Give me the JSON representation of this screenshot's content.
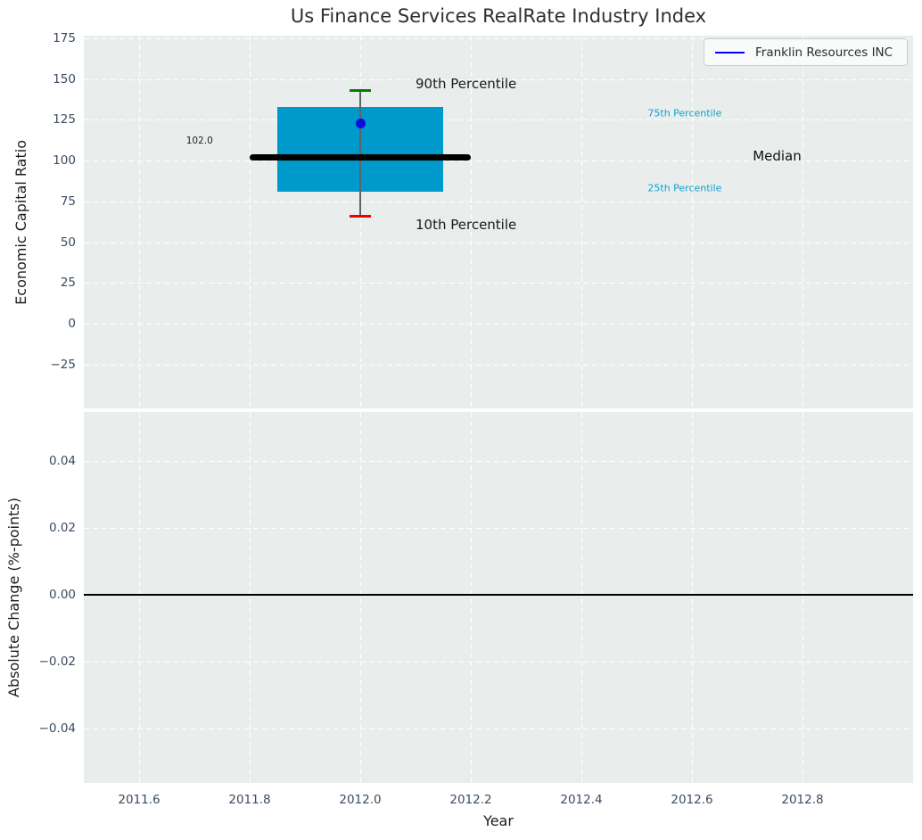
{
  "title": "Us Finance Services RealRate Industry Index",
  "legend": {
    "label": "Franklin Resources INC",
    "line_color": "#0000ff"
  },
  "colors": {
    "figure_bg": "#ffffff",
    "plot_bg": "#e9eeec",
    "grid": "#ffffff",
    "tick_label": "#3a4b60",
    "axis_label": "#1c1c1c",
    "title": "#2f2f2f",
    "box_fill": "#0099cb",
    "whisker": "#5f6368",
    "cap_upper": "#008000",
    "cap_lower": "#ee0000",
    "marker": "#0d0de0",
    "median_line": "#000000",
    "zero_line": "#000000"
  },
  "chart_data": [
    {
      "type": "box",
      "title": "Us Finance Services RealRate Industry Index",
      "ylabel": "Economic Capital Ratio",
      "xlim": [
        2011.5,
        2013.0
      ],
      "ylim": [
        -51.8,
        176.6
      ],
      "grid": true,
      "legend_position": "upper right",
      "x_ticks": {
        "values": [
          2011.6,
          2011.8,
          2012.0,
          2012.2,
          2012.4,
          2012.6,
          2012.8
        ],
        "labels": []
      },
      "y_ticks": {
        "values": [
          175,
          150,
          125,
          100,
          75,
          50,
          25,
          0,
          -25
        ],
        "labels": [
          "175",
          "150",
          "125",
          "100",
          "75",
          "50",
          "25",
          "0",
          "−25"
        ]
      },
      "box": {
        "x_center": 2012.0,
        "box_x_range": [
          2011.85,
          2012.15
        ],
        "median_x_range": [
          2011.8,
          2012.2
        ],
        "cap_x_range": [
          2011.98,
          2012.02
        ],
        "p10": 66,
        "p25": 81,
        "median": 102.0,
        "p75": 133,
        "p90": 143
      },
      "series": [
        {
          "name": "Franklin Resources INC",
          "type": "scatter",
          "x": [
            2012.0
          ],
          "values": [
            123
          ]
        }
      ],
      "annotations": [
        {
          "text": "90th Percentile",
          "x": 2012.1,
          "y": 147,
          "size": 15,
          "color": "#1a1a1a",
          "name": "annotation-90th-percentile"
        },
        {
          "text": "10th Percentile",
          "x": 2012.1,
          "y": 61,
          "size": 15,
          "color": "#1a1a1a",
          "name": "annotation-10th-percentile"
        },
        {
          "text": "75th Percentile",
          "x": 2012.52,
          "y": 129,
          "size": 11,
          "color": "#14a0cd",
          "name": "annotation-75th-percentile"
        },
        {
          "text": "25th Percentile",
          "x": 2012.52,
          "y": 83,
          "size": 11,
          "color": "#14a0cd",
          "name": "annotation-25th-percentile"
        },
        {
          "text": "Median",
          "x": 2012.71,
          "y": 103,
          "size": 15,
          "color": "#111111",
          "name": "annotation-median"
        },
        {
          "text": "102.0",
          "x": 2011.685,
          "y": 112,
          "size": 10.5,
          "color": "#222222",
          "name": "annotation-median-value"
        }
      ]
    },
    {
      "type": "line",
      "ylabel": "Absolute Change (%-points)",
      "xlabel": "Year",
      "xlim": [
        2011.5,
        2013.0
      ],
      "ylim": [
        -0.0563,
        0.0547
      ],
      "grid": true,
      "zero_line": 0.0,
      "x_ticks": {
        "values": [
          2011.6,
          2011.8,
          2012.0,
          2012.2,
          2012.4,
          2012.6,
          2012.8
        ],
        "labels": [
          "2011.6",
          "2011.8",
          "2012.0",
          "2012.2",
          "2012.4",
          "2012.6",
          "2012.8"
        ]
      },
      "y_ticks": {
        "values": [
          0.04,
          0.02,
          0.0,
          -0.02,
          -0.04
        ],
        "labels": [
          "0.04",
          "0.02",
          "0.00",
          "−0.02",
          "−0.04"
        ]
      },
      "series": []
    }
  ]
}
